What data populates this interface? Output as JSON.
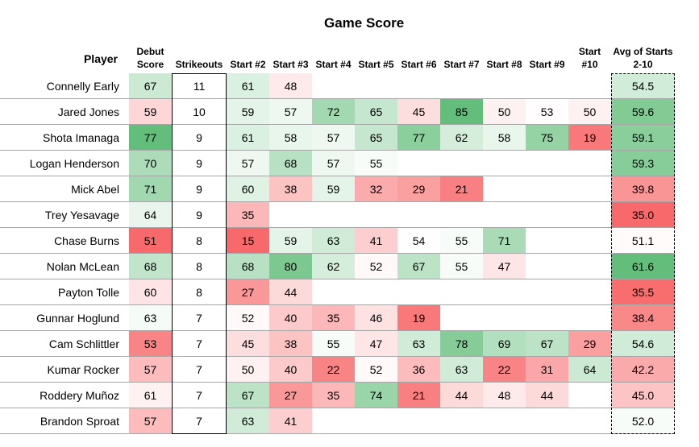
{
  "chart_data": {
    "type": "table",
    "title": "Game Score",
    "columns": [
      "Player",
      "Debut Score",
      "Strikeouts",
      "Start #2",
      "Start #3",
      "Start #4",
      "Start #5",
      "Start #6",
      "Start #7",
      "Start #8",
      "Start #9",
      "Start #10",
      "Avg of Starts 2-10"
    ],
    "rows": [
      {
        "player": "Connelly Early",
        "debut": 67,
        "k": 11,
        "starts": [
          61,
          48,
          null,
          null,
          null,
          null,
          null,
          null,
          null
        ],
        "avg": "54.5"
      },
      {
        "player": "Jared Jones",
        "debut": 59,
        "k": 10,
        "starts": [
          59,
          57,
          72,
          65,
          45,
          85,
          50,
          53,
          50
        ],
        "avg": "59.6"
      },
      {
        "player": "Shota Imanaga",
        "debut": 77,
        "k": 9,
        "starts": [
          61,
          58,
          57,
          65,
          77,
          62,
          58,
          75,
          19
        ],
        "avg": "59.1"
      },
      {
        "player": "Logan Henderson",
        "debut": 70,
        "k": 9,
        "starts": [
          57,
          68,
          57,
          55,
          null,
          null,
          null,
          null,
          null
        ],
        "avg": "59.3"
      },
      {
        "player": "Mick Abel",
        "debut": 71,
        "k": 9,
        "starts": [
          60,
          38,
          59,
          32,
          29,
          21,
          null,
          null,
          null
        ],
        "avg": "39.8"
      },
      {
        "player": "Trey Yesavage",
        "debut": 64,
        "k": 9,
        "starts": [
          35,
          null,
          null,
          null,
          null,
          null,
          null,
          null,
          null
        ],
        "avg": "35.0"
      },
      {
        "player": "Chase Burns",
        "debut": 51,
        "k": 8,
        "starts": [
          15,
          59,
          63,
          41,
          54,
          55,
          71,
          null,
          null
        ],
        "avg": "51.1"
      },
      {
        "player": "Nolan McLean",
        "debut": 68,
        "k": 8,
        "starts": [
          68,
          80,
          62,
          52,
          67,
          55,
          47,
          null,
          null
        ],
        "avg": "61.6"
      },
      {
        "player": "Payton Tolle",
        "debut": 60,
        "k": 8,
        "starts": [
          27,
          44,
          null,
          null,
          null,
          null,
          null,
          null,
          null
        ],
        "avg": "35.5"
      },
      {
        "player": "Gunnar Hoglund",
        "debut": 63,
        "k": 7,
        "starts": [
          52,
          40,
          35,
          46,
          19,
          null,
          null,
          null,
          null
        ],
        "avg": "38.4"
      },
      {
        "player": "Cam Schlittler",
        "debut": 53,
        "k": 7,
        "starts": [
          45,
          38,
          55,
          47,
          63,
          78,
          69,
          67,
          29
        ],
        "avg": "54.6"
      },
      {
        "player": "Kumar Rocker",
        "debut": 57,
        "k": 7,
        "starts": [
          50,
          40,
          22,
          52,
          36,
          63,
          22,
          31,
          64
        ],
        "avg": "42.2"
      },
      {
        "player": "Roddery Muñoz",
        "debut": 61,
        "k": 7,
        "starts": [
          67,
          27,
          35,
          74,
          21,
          44,
          48,
          44,
          null
        ],
        "avg": "45.0"
      },
      {
        "player": "Brandon Sproat",
        "debut": 57,
        "k": 7,
        "starts": [
          63,
          41,
          null,
          null,
          null,
          null,
          null,
          null,
          null
        ],
        "avg": "52.0"
      }
    ],
    "colors": {
      "low": "#f8696b",
      "mid": "#ffffff",
      "high": "#63be7b"
    }
  }
}
